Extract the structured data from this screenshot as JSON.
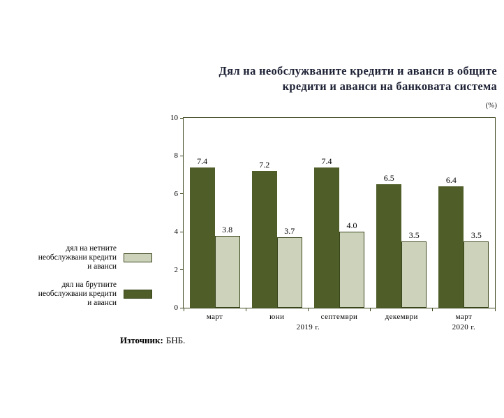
{
  "chart": {
    "title_line1": "Дял на необслужваните кредити и аванси в общите",
    "title_line2": "кредити и аванси на банковата система",
    "unit": "(%)"
  },
  "legend": {
    "items": [
      {
        "lines": [
          "дял на нетните",
          "необслужвани кредити",
          "и аванси"
        ],
        "color": "#cdd3bb"
      },
      {
        "lines": [
          "дял на брутните",
          "необслужвани кредити",
          "и аванси"
        ],
        "color": "#4f5e29"
      }
    ]
  },
  "source": {
    "label": "Източник:",
    "value": "БНБ."
  },
  "colors": {
    "gross_series": "#4f5e29",
    "net_series": "#cdd3bb",
    "axis": "#39451b",
    "title": "#1e2235"
  },
  "chart_data": {
    "type": "bar",
    "title": "Дял на необслужваните кредити и аванси в общите кредити и аванси на банковата система",
    "unit": "(%)",
    "categories": [
      "март",
      "юни",
      "септември",
      "декември",
      "март"
    ],
    "category_groups": [
      {
        "label": "2019 г.",
        "span": [
          0,
          3
        ]
      },
      {
        "label": "2020 г.",
        "span": [
          4,
          4
        ]
      }
    ],
    "series": [
      {
        "name": "дял на брутните необслужвани кредити и аванси",
        "color": "#4f5e29",
        "values": [
          7.4,
          7.2,
          7.4,
          6.5,
          6.4
        ]
      },
      {
        "name": "дял на нетните необслужвани кредити и аванси",
        "color": "#cdd3bb",
        "values": [
          3.8,
          3.7,
          4.0,
          3.5,
          3.5
        ]
      }
    ],
    "ylim": [
      0,
      10
    ],
    "yticks": [
      0,
      2,
      4,
      6,
      8,
      10
    ],
    "grid": false,
    "legend_position": "left"
  }
}
